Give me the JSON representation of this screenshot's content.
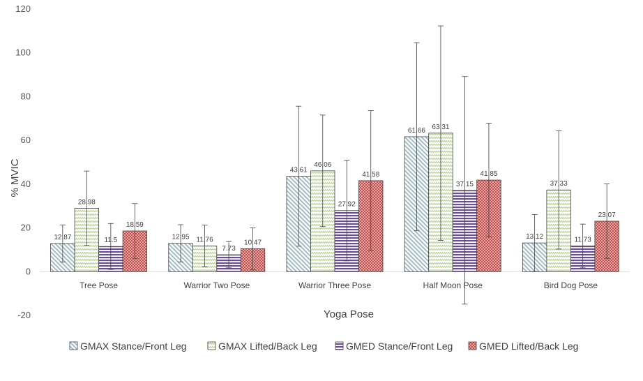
{
  "chart_data": {
    "type": "bar",
    "title": "",
    "xlabel": "Yoga Pose",
    "ylabel": "% MVIC",
    "ylim": [
      -20,
      120
    ],
    "yticks": [
      -20,
      0,
      20,
      40,
      60,
      80,
      100,
      120
    ],
    "grid": false,
    "legend_position": "bottom",
    "categories": [
      "Tree Pose",
      "Warrior Two Pose",
      "Warrior Three Pose",
      "Half Moon Pose",
      "Bird Dog Pose"
    ],
    "series": [
      {
        "name": "GMAX Stance/Front Leg",
        "color": "#8fb3c0",
        "pattern": "diagonal-down",
        "values": [
          12.87,
          12.95,
          43.61,
          61.66,
          13.12
        ],
        "labels": [
          "12.87",
          "12.95",
          "43.61",
          "61.66",
          "13.12"
        ],
        "errors": [
          8.5,
          8.5,
          32,
          43,
          13
        ]
      },
      {
        "name": "GMAX Lifted/Back Leg",
        "color": "#b5cc8e",
        "pattern": "zigzag",
        "values": [
          28.98,
          11.76,
          46.06,
          63.31,
          37.33
        ],
        "labels": [
          "28.98",
          "11.76",
          "46.06",
          "63.31",
          "37.33"
        ],
        "errors": [
          17,
          9.5,
          25.5,
          49,
          27
        ]
      },
      {
        "name": "GMED Stance/Front Leg",
        "color": "#6b4f8c",
        "pattern": "horizontal",
        "values": [
          11.5,
          7.73,
          27.92,
          37.15,
          11.73
        ],
        "labels": [
          "11.5",
          "7.73",
          "27.92",
          "37.15",
          "11.73"
        ],
        "errors": [
          10.5,
          6,
          23,
          52,
          10
        ]
      },
      {
        "name": "GMED Lifted/Back Leg",
        "color": "#c0504d",
        "pattern": "checker",
        "values": [
          18.59,
          10.47,
          41.58,
          41.85,
          23.07
        ],
        "labels": [
          "18.59",
          "10.47",
          "41.58",
          "41.85",
          "23.07"
        ],
        "errors": [
          12.5,
          9.5,
          32,
          26,
          17
        ]
      }
    ]
  }
}
